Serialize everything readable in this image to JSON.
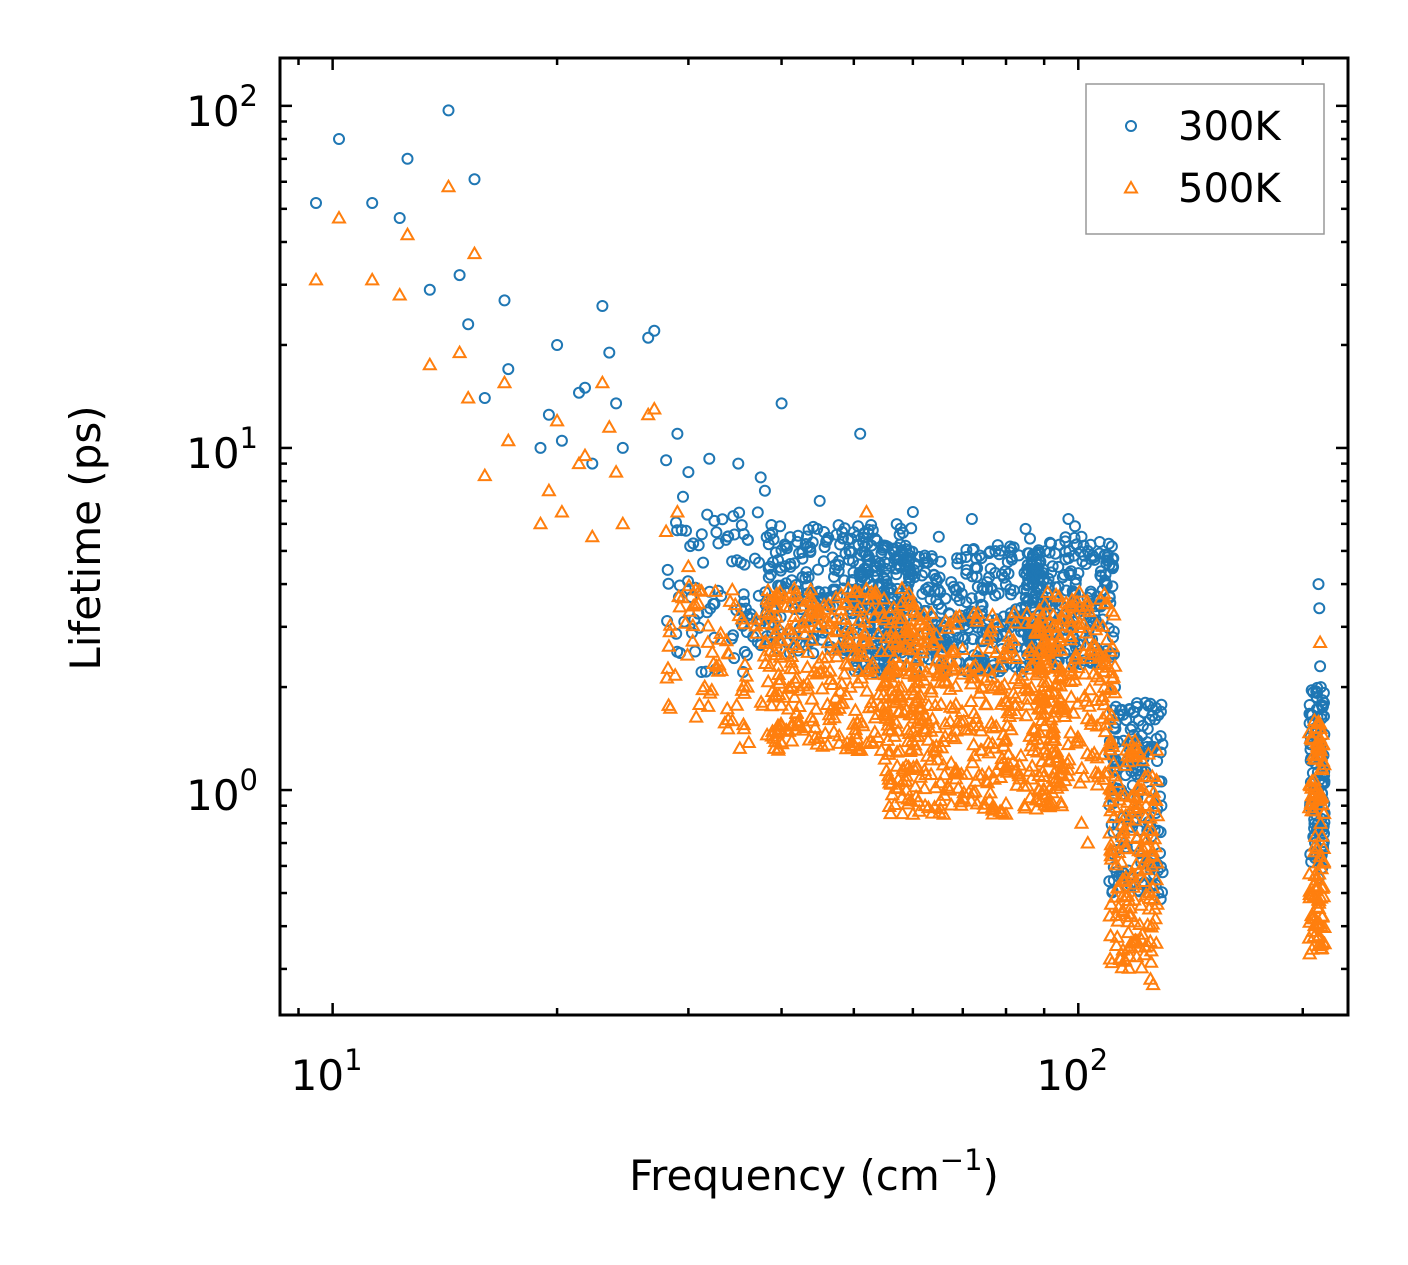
{
  "chart_data": {
    "type": "scatter",
    "title": "",
    "xlabel": "Frequency (cm",
    "xlabel_exp": "−1",
    "xlabel_close": ")",
    "ylabel": "Lifetime (ps)",
    "xscale": "log",
    "yscale": "log",
    "xlim": [
      8.5,
      230
    ],
    "ylim": [
      0.22,
      138
    ],
    "x_ticks": [
      {
        "value": 10,
        "base": "10",
        "exp": "1"
      },
      {
        "value": 100,
        "base": "10",
        "exp": "2"
      }
    ],
    "y_ticks": [
      {
        "value": 1,
        "base": "10",
        "exp": "0"
      },
      {
        "value": 10,
        "base": "10",
        "exp": "1"
      },
      {
        "value": 100,
        "base": "10",
        "exp": "2"
      }
    ],
    "legend_position": "top-right",
    "series": [
      {
        "name": "300K",
        "marker": "circle",
        "color": "#1f77b4",
        "points": [
          [
            9.5,
            52
          ],
          [
            10.2,
            80
          ],
          [
            11.3,
            52
          ],
          [
            12.3,
            47
          ],
          [
            12.6,
            70
          ],
          [
            13.5,
            29
          ],
          [
            14.3,
            97
          ],
          [
            14.8,
            32
          ],
          [
            15.2,
            23
          ],
          [
            15.5,
            61
          ],
          [
            16.0,
            14
          ],
          [
            17.0,
            27
          ],
          [
            17.2,
            17
          ],
          [
            19.0,
            10
          ],
          [
            19.5,
            12.5
          ],
          [
            20.0,
            20
          ],
          [
            20.3,
            10.5
          ],
          [
            21.4,
            14.5
          ],
          [
            21.8,
            15
          ],
          [
            22.3,
            9
          ],
          [
            23.0,
            26
          ],
          [
            23.5,
            19
          ],
          [
            24.0,
            13.5
          ],
          [
            24.5,
            10
          ],
          [
            26.5,
            21
          ],
          [
            27.0,
            22
          ],
          [
            28.0,
            9.2
          ],
          [
            29.0,
            11
          ],
          [
            29.5,
            7.2
          ],
          [
            30.0,
            8.5
          ],
          [
            32.0,
            9.3
          ],
          [
            35.0,
            9.0
          ],
          [
            37.5,
            8.2
          ],
          [
            38.0,
            7.5
          ],
          [
            40.0,
            13.5
          ],
          [
            45.0,
            7.0
          ],
          [
            51.0,
            11.0
          ],
          [
            60.0,
            6.5
          ],
          [
            65.0,
            5.5
          ],
          [
            72.0,
            6.2
          ],
          [
            78.0,
            5.2
          ],
          [
            85.0,
            5.8
          ],
          [
            97.0,
            6.2
          ],
          [
            99.0,
            5.9
          ],
          [
            101.0,
            5.5
          ],
          [
            103.0,
            5.0
          ],
          [
            109.0,
            4.0
          ],
          [
            112.0,
            2.0
          ],
          [
            116.0,
            1.6
          ],
          [
            120.0,
            1.4
          ],
          [
            128.0,
            0.5
          ],
          [
            129.0,
            0.48
          ],
          [
            210.0,
            4.0
          ],
          [
            210.5,
            3.4
          ],
          [
            211.0,
            2.3
          ],
          [
            211.5,
            2.0
          ]
        ],
        "clusters": [
          {
            "xmin": 28,
            "xmax": 40,
            "ymin": 2.2,
            "ymax": 6.5,
            "n": 90
          },
          {
            "xmin": 38,
            "xmax": 60,
            "ymin": 2.5,
            "ymax": 6.0,
            "n": 300
          },
          {
            "xmin": 50,
            "xmax": 90,
            "ymin": 2.2,
            "ymax": 5.2,
            "n": 420
          },
          {
            "xmin": 85,
            "xmax": 112,
            "ymin": 2.3,
            "ymax": 5.5,
            "n": 220
          },
          {
            "xmin": 110,
            "xmax": 130,
            "ymin": 0.5,
            "ymax": 1.8,
            "n": 160
          },
          {
            "xmin": 204,
            "xmax": 214,
            "ymin": 0.55,
            "ymax": 2.0,
            "n": 110
          }
        ]
      },
      {
        "name": "500K",
        "marker": "triangle",
        "color": "#ff7f0e",
        "points": [
          [
            9.5,
            31
          ],
          [
            10.2,
            47
          ],
          [
            11.3,
            31
          ],
          [
            12.3,
            28
          ],
          [
            12.6,
            42
          ],
          [
            13.5,
            17.5
          ],
          [
            14.3,
            58
          ],
          [
            14.8,
            19
          ],
          [
            15.2,
            14
          ],
          [
            15.5,
            37
          ],
          [
            16.0,
            8.3
          ],
          [
            17.0,
            15.5
          ],
          [
            17.2,
            10.5
          ],
          [
            19.0,
            6.0
          ],
          [
            19.5,
            7.5
          ],
          [
            20.0,
            12
          ],
          [
            20.3,
            6.5
          ],
          [
            21.4,
            9.0
          ],
          [
            21.8,
            9.5
          ],
          [
            22.3,
            5.5
          ],
          [
            23.0,
            15.5
          ],
          [
            23.5,
            11.5
          ],
          [
            24.0,
            8.5
          ],
          [
            24.5,
            6.0
          ],
          [
            26.5,
            12.5
          ],
          [
            27.0,
            13
          ],
          [
            28.0,
            5.7
          ],
          [
            29.0,
            6.5
          ],
          [
            30.0,
            4.5
          ],
          [
            34.0,
            2.5
          ],
          [
            36.0,
            2.0
          ],
          [
            45.0,
            2.2
          ],
          [
            52.0,
            6.5
          ],
          [
            58.0,
            0.95
          ],
          [
            60.0,
            0.85
          ],
          [
            66.0,
            0.85
          ],
          [
            70.0,
            0.95
          ],
          [
            80.0,
            0.85
          ],
          [
            90.0,
            1.0
          ],
          [
            95.0,
            0.9
          ],
          [
            101.0,
            0.8
          ],
          [
            103.0,
            0.7
          ],
          [
            112.0,
            2.3
          ],
          [
            125.0,
            0.28
          ],
          [
            126.0,
            0.27
          ],
          [
            211.0,
            2.7
          ]
        ],
        "clusters": [
          {
            "xmin": 28,
            "xmax": 40,
            "ymin": 1.3,
            "ymax": 4.0,
            "n": 90
          },
          {
            "xmin": 38,
            "xmax": 62,
            "ymin": 1.3,
            "ymax": 3.9,
            "n": 320
          },
          {
            "xmin": 55,
            "xmax": 95,
            "ymin": 0.85,
            "ymax": 3.3,
            "n": 480
          },
          {
            "xmin": 88,
            "xmax": 112,
            "ymin": 1.0,
            "ymax": 3.8,
            "n": 200
          },
          {
            "xmin": 110,
            "xmax": 128,
            "ymin": 0.3,
            "ymax": 1.4,
            "n": 180
          },
          {
            "xmin": 204,
            "xmax": 214,
            "ymin": 0.33,
            "ymax": 1.6,
            "n": 120
          }
        ]
      }
    ]
  }
}
